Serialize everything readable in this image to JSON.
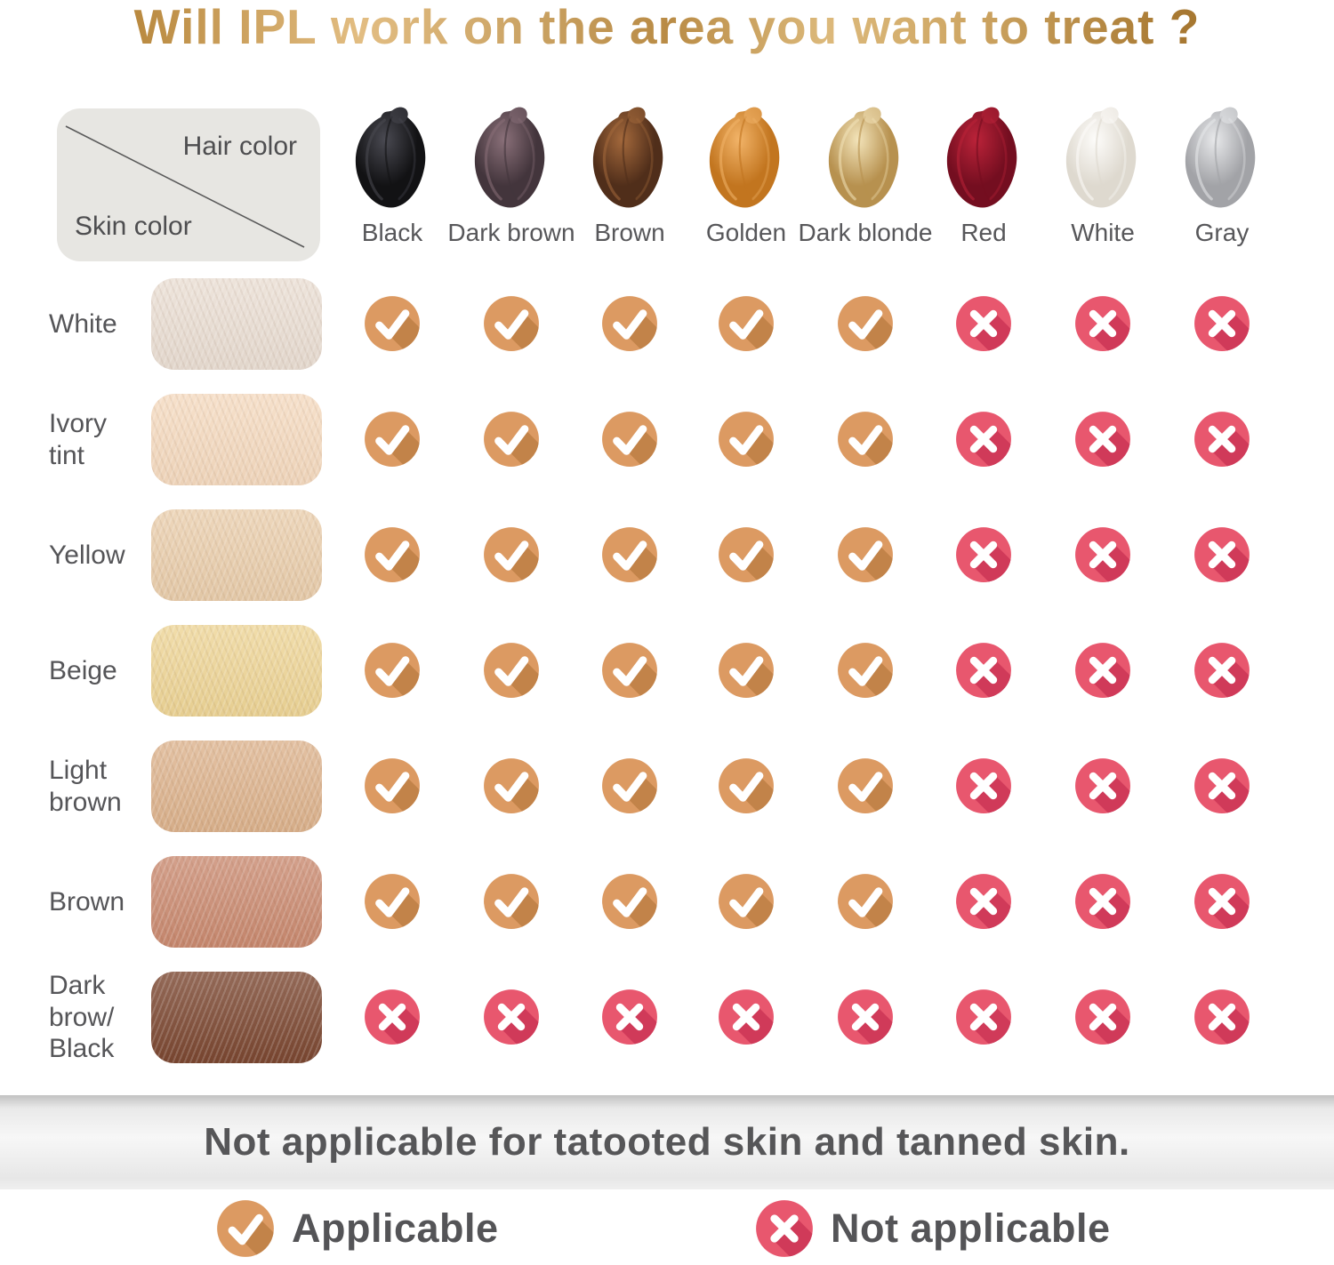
{
  "title": "Will IPL work on the area you want to treat ?",
  "matrix_corner": {
    "top_right_label": "Hair color",
    "bottom_left_label": "Skin color"
  },
  "hair_colors": [
    {
      "name": "Black",
      "base": "#121214",
      "hi": "#4a4a52"
    },
    {
      "name": "Dark brown",
      "base": "#43353c",
      "hi": "#8a7079"
    },
    {
      "name": "Brown",
      "base": "#502e1a",
      "hi": "#a4693c"
    },
    {
      "name": "Golden",
      "base": "#c2751f",
      "hi": "#f2b469"
    },
    {
      "name": "Dark blonde",
      "base": "#b7914f",
      "hi": "#f3e4ba"
    },
    {
      "name": "Red",
      "base": "#740e20",
      "hi": "#bb2339"
    },
    {
      "name": "White",
      "base": "#ded9cf",
      "hi": "#fdfcfa"
    },
    {
      "name": "Gray",
      "base": "#a2a3a7",
      "hi": "#e8e9eb"
    }
  ],
  "skin_rows": [
    {
      "label": "White",
      "lines": [
        "White"
      ],
      "color": "#e9ddd2",
      "values": [
        "yes",
        "yes",
        "yes",
        "yes",
        "yes",
        "no",
        "no",
        "no"
      ]
    },
    {
      "label": "Ivory tint",
      "lines": [
        "Ivory",
        "tint"
      ],
      "color": "#f4d9be",
      "values": [
        "yes",
        "yes",
        "yes",
        "yes",
        "yes",
        "no",
        "no",
        "no"
      ]
    },
    {
      "label": "Yellow",
      "lines": [
        "Yellow"
      ],
      "color": "#e9cdab",
      "values": [
        "yes",
        "yes",
        "yes",
        "yes",
        "yes",
        "no",
        "no",
        "no"
      ]
    },
    {
      "label": "Beige",
      "lines": [
        "Beige"
      ],
      "color": "#edd495",
      "values": [
        "yes",
        "yes",
        "yes",
        "yes",
        "yes",
        "no",
        "no",
        "no"
      ]
    },
    {
      "label": "Light brown",
      "lines": [
        "Light",
        "brown"
      ],
      "color": "#dcb28c",
      "values": [
        "yes",
        "yes",
        "yes",
        "yes",
        "yes",
        "no",
        "no",
        "no"
      ]
    },
    {
      "label": "Brown",
      "lines": [
        "Brown"
      ],
      "color": "#c9896f",
      "values": [
        "yes",
        "yes",
        "yes",
        "yes",
        "yes",
        "no",
        "no",
        "no"
      ]
    },
    {
      "label": "Dark brow/Black",
      "lines": [
        "Dark",
        "brow/",
        "Black"
      ],
      "color": "#7a4630",
      "values": [
        "no",
        "no",
        "no",
        "no",
        "no",
        "no",
        "no",
        "no"
      ]
    }
  ],
  "icons": {
    "applicable": {
      "fill": "#dc9a62",
      "shadow": "#c28349"
    },
    "not_applicable": {
      "fill": "#e8576e",
      "shadow": "#d03a59"
    }
  },
  "banner": {
    "text": "Not applicable for tatooted skin and tanned skin."
  },
  "legend": {
    "applicable_label": "Applicable",
    "not_applicable_label": "Not applicable"
  },
  "chart_data": {
    "type": "table",
    "title": "Will IPL work on the area you want to treat ?",
    "columns": [
      "Black",
      "Dark brown",
      "Brown",
      "Golden",
      "Dark blonde",
      "Red",
      "White",
      "Gray"
    ],
    "rows": [
      "White",
      "Ivory tint",
      "Yellow",
      "Beige",
      "Light brown",
      "Brown",
      "Dark brow/Black"
    ],
    "values": [
      [
        "yes",
        "yes",
        "yes",
        "yes",
        "yes",
        "no",
        "no",
        "no"
      ],
      [
        "yes",
        "yes",
        "yes",
        "yes",
        "yes",
        "no",
        "no",
        "no"
      ],
      [
        "yes",
        "yes",
        "yes",
        "yes",
        "yes",
        "no",
        "no",
        "no"
      ],
      [
        "yes",
        "yes",
        "yes",
        "yes",
        "yes",
        "no",
        "no",
        "no"
      ],
      [
        "yes",
        "yes",
        "yes",
        "yes",
        "yes",
        "no",
        "no",
        "no"
      ],
      [
        "yes",
        "yes",
        "yes",
        "yes",
        "yes",
        "no",
        "no",
        "no"
      ],
      [
        "no",
        "no",
        "no",
        "no",
        "no",
        "no",
        "no",
        "no"
      ]
    ],
    "value_legend": {
      "yes": "Applicable",
      "no": "Not applicable"
    },
    "footnote": "Not applicable for tatooted skin and tanned skin.",
    "legend_position": "bottom"
  }
}
